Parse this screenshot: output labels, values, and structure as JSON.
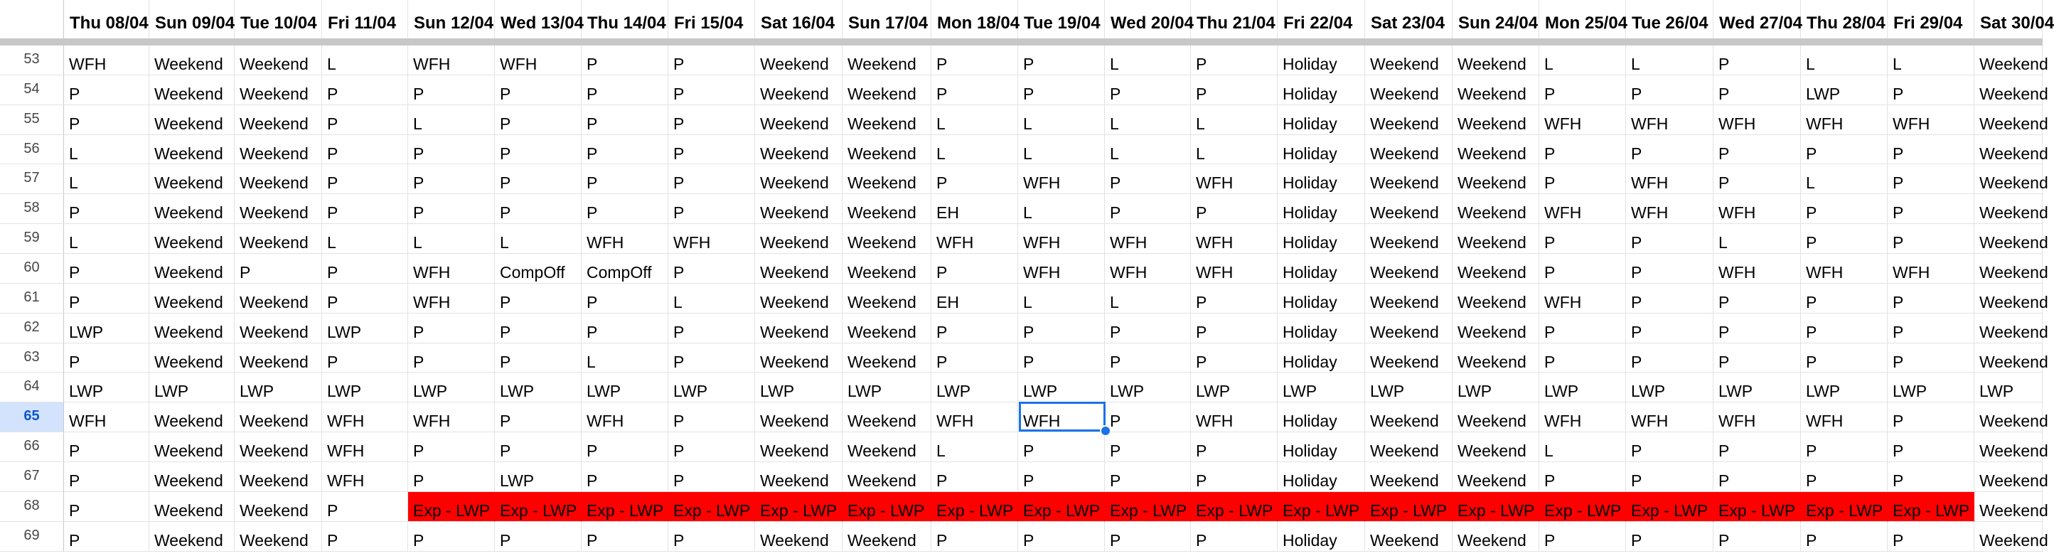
{
  "column_headers": [
    "Thu 08/04",
    "Sun 09/04",
    "Tue 10/04",
    "Fri 11/04",
    "Sun 12/04",
    "Wed 13/04",
    "Thu 14/04",
    "Fri 15/04",
    "Sat 16/04",
    "Sun 17/04",
    "Mon 18/04",
    "Tue 19/04",
    "Wed 20/04",
    "Thu 21/04",
    "Fri 22/04",
    "Sat 23/04",
    "Sun 24/04",
    "Mon 25/04",
    "Tue 26/04",
    "Wed 27/04",
    "Thu 28/04",
    "Fri 29/04",
    "Sat 30/04"
  ],
  "active_row": "65",
  "selected_cell": {
    "row": "65",
    "column": "Tue 19/04"
  },
  "highlight_color": "#ff0000",
  "rows": [
    {
      "num": "53",
      "cells": [
        "WFH",
        "Weekend",
        "Weekend",
        "L",
        "WFH",
        "WFH",
        "P",
        "P",
        "Weekend",
        "Weekend",
        "P",
        "P",
        "L",
        "P",
        "Holiday",
        "Weekend",
        "Weekend",
        "L",
        "L",
        "P",
        "L",
        "L",
        "Weekend"
      ]
    },
    {
      "num": "54",
      "cells": [
        "P",
        "Weekend",
        "Weekend",
        "P",
        "P",
        "P",
        "P",
        "P",
        "Weekend",
        "Weekend",
        "P",
        "P",
        "P",
        "P",
        "Holiday",
        "Weekend",
        "Weekend",
        "P",
        "P",
        "P",
        "LWP",
        "P",
        "Weekend"
      ]
    },
    {
      "num": "55",
      "cells": [
        "P",
        "Weekend",
        "Weekend",
        "P",
        "L",
        "P",
        "P",
        "P",
        "Weekend",
        "Weekend",
        "L",
        "L",
        "L",
        "L",
        "Holiday",
        "Weekend",
        "Weekend",
        "WFH",
        "WFH",
        "WFH",
        "WFH",
        "WFH",
        "Weekend"
      ]
    },
    {
      "num": "56",
      "cells": [
        "L",
        "Weekend",
        "Weekend",
        "P",
        "P",
        "P",
        "P",
        "P",
        "Weekend",
        "Weekend",
        "L",
        "L",
        "L",
        "L",
        "Holiday",
        "Weekend",
        "Weekend",
        "P",
        "P",
        "P",
        "P",
        "P",
        "Weekend"
      ]
    },
    {
      "num": "57",
      "cells": [
        "L",
        "Weekend",
        "Weekend",
        "P",
        "P",
        "P",
        "P",
        "P",
        "Weekend",
        "Weekend",
        "P",
        "WFH",
        "P",
        "WFH",
        "Holiday",
        "Weekend",
        "Weekend",
        "P",
        "WFH",
        "P",
        "L",
        "P",
        "Weekend"
      ]
    },
    {
      "num": "58",
      "cells": [
        "P",
        "Weekend",
        "Weekend",
        "P",
        "P",
        "P",
        "P",
        "P",
        "Weekend",
        "Weekend",
        "EH",
        "L",
        "P",
        "P",
        "Holiday",
        "Weekend",
        "Weekend",
        "WFH",
        "WFH",
        "WFH",
        "P",
        "P",
        "Weekend"
      ]
    },
    {
      "num": "59",
      "cells": [
        "L",
        "Weekend",
        "Weekend",
        "L",
        "L",
        "L",
        "WFH",
        "WFH",
        "Weekend",
        "Weekend",
        "WFH",
        "WFH",
        "WFH",
        "WFH",
        "Holiday",
        "Weekend",
        "Weekend",
        "P",
        "P",
        "L",
        "P",
        "P",
        "Weekend"
      ]
    },
    {
      "num": "60",
      "cells": [
        "P",
        "Weekend",
        "P",
        "P",
        "WFH",
        "CompOff",
        "CompOff",
        "P",
        "Weekend",
        "Weekend",
        "P",
        "WFH",
        "WFH",
        "WFH",
        "Holiday",
        "Weekend",
        "Weekend",
        "P",
        "P",
        "WFH",
        "WFH",
        "WFH",
        "Weekend"
      ]
    },
    {
      "num": "61",
      "cells": [
        "P",
        "Weekend",
        "Weekend",
        "P",
        "WFH",
        "P",
        "P",
        "L",
        "Weekend",
        "Weekend",
        "EH",
        "L",
        "L",
        "P",
        "Holiday",
        "Weekend",
        "Weekend",
        "WFH",
        "P",
        "P",
        "P",
        "P",
        "Weekend"
      ]
    },
    {
      "num": "62",
      "cells": [
        "LWP",
        "Weekend",
        "Weekend",
        "LWP",
        "P",
        "P",
        "P",
        "P",
        "Weekend",
        "Weekend",
        "P",
        "P",
        "P",
        "P",
        "Holiday",
        "Weekend",
        "Weekend",
        "P",
        "P",
        "P",
        "P",
        "P",
        "Weekend"
      ]
    },
    {
      "num": "63",
      "cells": [
        "P",
        "Weekend",
        "Weekend",
        "P",
        "P",
        "P",
        "L",
        "P",
        "Weekend",
        "Weekend",
        "P",
        "P",
        "P",
        "P",
        "Holiday",
        "Weekend",
        "Weekend",
        "P",
        "P",
        "P",
        "P",
        "P",
        "Weekend"
      ]
    },
    {
      "num": "64",
      "cells": [
        "LWP",
        "LWP",
        "LWP",
        "LWP",
        "LWP",
        "LWP",
        "LWP",
        "LWP",
        "LWP",
        "LWP",
        "LWP",
        "LWP",
        "LWP",
        "LWP",
        "LWP",
        "LWP",
        "LWP",
        "LWP",
        "LWP",
        "LWP",
        "LWP",
        "LWP",
        "LWP"
      ]
    },
    {
      "num": "65",
      "cells": [
        "WFH",
        "Weekend",
        "Weekend",
        "WFH",
        "WFH",
        "P",
        "WFH",
        "P",
        "Weekend",
        "Weekend",
        "WFH",
        "WFH",
        "P",
        "WFH",
        "Holiday",
        "Weekend",
        "Weekend",
        "WFH",
        "WFH",
        "WFH",
        "WFH",
        "P",
        "Weekend"
      ]
    },
    {
      "num": "66",
      "cells": [
        "P",
        "Weekend",
        "Weekend",
        "WFH",
        "P",
        "P",
        "P",
        "P",
        "Weekend",
        "Weekend",
        "L",
        "P",
        "P",
        "P",
        "Holiday",
        "Weekend",
        "Weekend",
        "L",
        "P",
        "P",
        "P",
        "P",
        "Weekend"
      ]
    },
    {
      "num": "67",
      "cells": [
        "P",
        "Weekend",
        "Weekend",
        "WFH",
        "P",
        "LWP",
        "P",
        "P",
        "Weekend",
        "Weekend",
        "P",
        "P",
        "P",
        "P",
        "Holiday",
        "Weekend",
        "Weekend",
        "P",
        "P",
        "P",
        "P",
        "P",
        "Weekend"
      ]
    },
    {
      "num": "68",
      "cells": [
        "P",
        "Weekend",
        "Weekend",
        "P",
        "Exp - LWP",
        "Exp - LWP",
        "Exp - LWP",
        "Exp - LWP",
        "Exp - LWP",
        "Exp - LWP",
        "Exp - LWP",
        "Exp - LWP",
        "Exp - LWP",
        "Exp - LWP",
        "Exp - LWP",
        "Exp - LWP",
        "Exp - LWP",
        "Exp - LWP",
        "Exp - LWP",
        "Exp - LWP",
        "Exp - LWP",
        "Exp - LWP",
        "Weekend"
      ]
    },
    {
      "num": "69",
      "cells": [
        "P",
        "Weekend",
        "Weekend",
        "P",
        "P",
        "P",
        "P",
        "P",
        "Weekend",
        "Weekend",
        "P",
        "P",
        "P",
        "P",
        "Holiday",
        "Weekend",
        "Weekend",
        "P",
        "P",
        "P",
        "P",
        "P",
        "Weekend"
      ]
    }
  ]
}
